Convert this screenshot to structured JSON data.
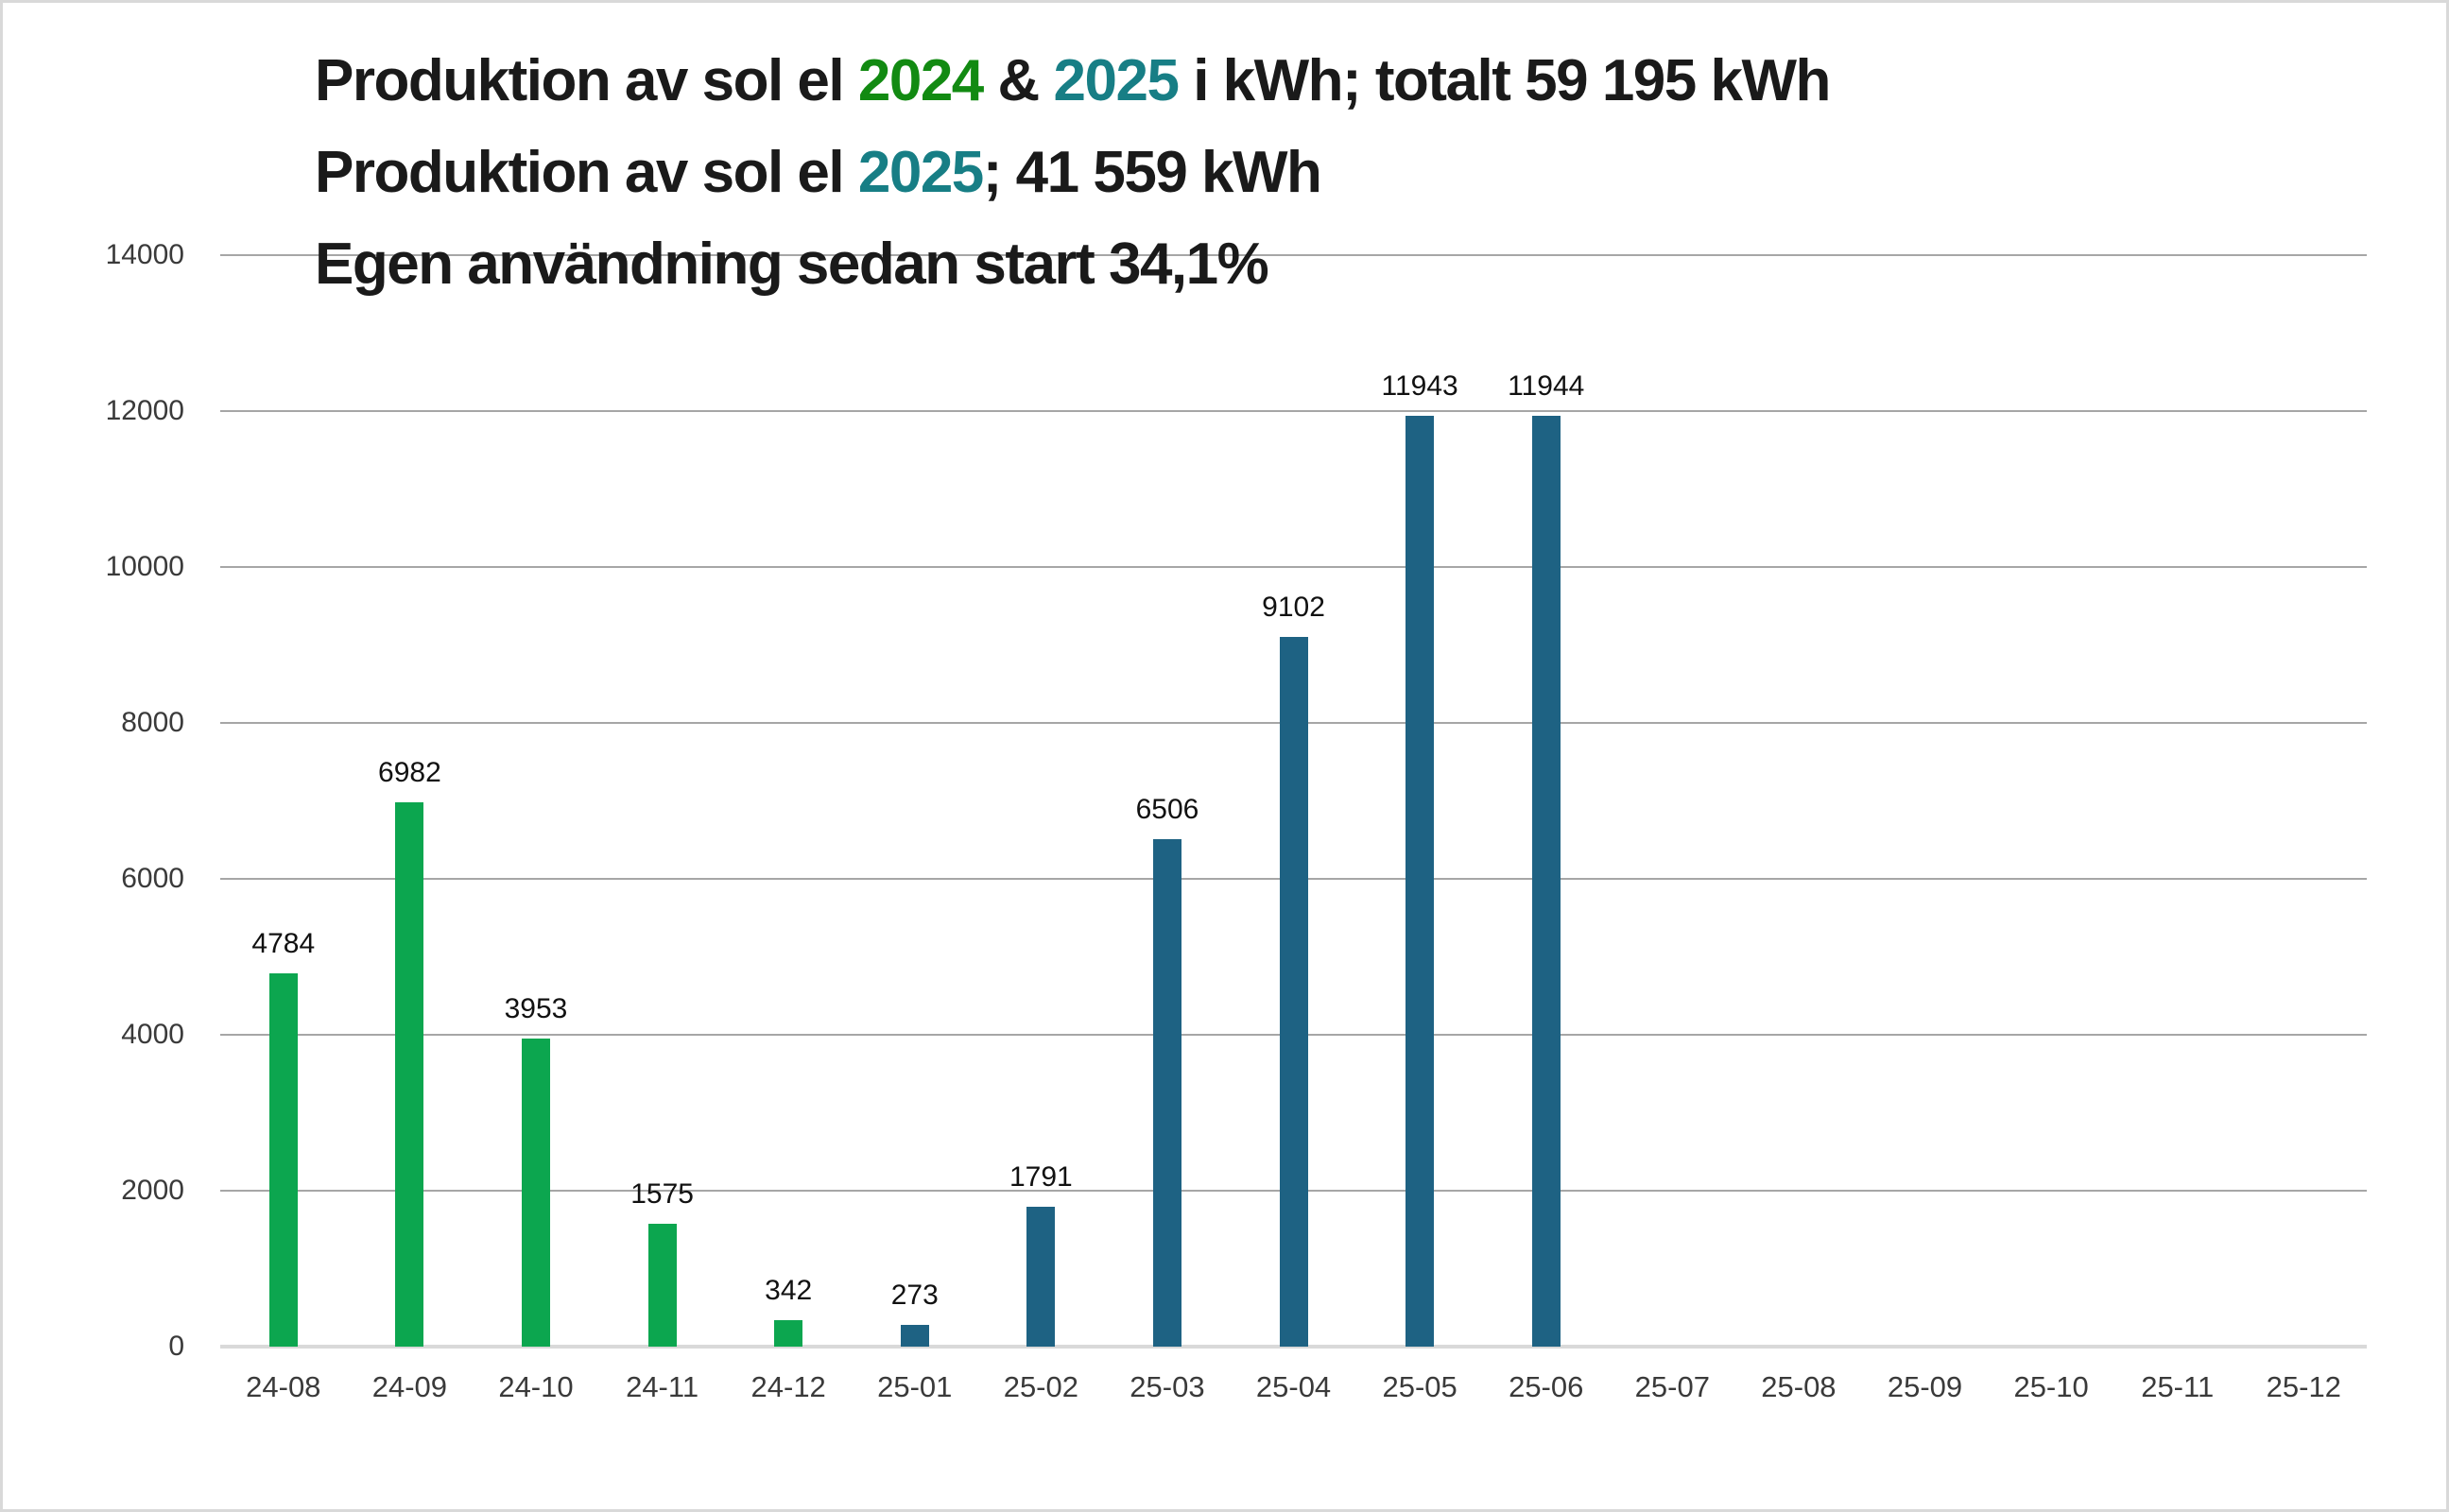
{
  "title": {
    "lines": [
      {
        "name": "title-line-1",
        "parts": [
          {
            "text": "Produktion av sol el ",
            "color": "#1a1a1a"
          },
          {
            "text": "2024",
            "color": "#128a12"
          },
          {
            "text": " & ",
            "color": "#1a1a1a"
          },
          {
            "text": "2025",
            "color": "#177e85"
          },
          {
            "text": " i kWh; totalt 59 195 kWh",
            "color": "#1a1a1a"
          }
        ]
      },
      {
        "name": "title-line-2",
        "parts": [
          {
            "text": "Produktion av sol el ",
            "color": "#1a1a1a"
          },
          {
            "text": "2025",
            "color": "#177e85"
          },
          {
            "text": "; 41 559 kWh",
            "color": "#1a1a1a"
          }
        ]
      },
      {
        "name": "title-line-3",
        "parts": [
          {
            "text": "Egen användning sedan start 34,1%",
            "color": "#1a1a1a"
          }
        ]
      }
    ]
  },
  "chart_data": {
    "type": "bar",
    "title": "Produktion av sol el 2024 & 2025 i kWh; totalt 59 195 kWh",
    "subtitle": "Produktion av sol el 2025; 41 559 kWh",
    "subtitle2": "Egen användning sedan start 34,1%",
    "categories": [
      "24-08",
      "24-09",
      "24-10",
      "24-11",
      "24-12",
      "25-01",
      "25-02",
      "25-03",
      "25-04",
      "25-05",
      "25-06",
      "25-07",
      "25-08",
      "25-09",
      "25-10",
      "25-11",
      "25-12"
    ],
    "values": [
      4784,
      6982,
      3953,
      1575,
      342,
      273,
      1791,
      6506,
      9102,
      11943,
      11944,
      null,
      null,
      null,
      null,
      null,
      null
    ],
    "groups": [
      "2024",
      "2024",
      "2024",
      "2024",
      "2024",
      "2025",
      "2025",
      "2025",
      "2025",
      "2025",
      "2025",
      null,
      null,
      null,
      null,
      null,
      null
    ],
    "data_labels": [
      "4784",
      "6982",
      "3953",
      "1575",
      "342",
      "273",
      "1791",
      "6506",
      "9102",
      "11943",
      "11944",
      "",
      "",
      "",
      "",
      "",
      ""
    ],
    "xlabel": "",
    "ylabel": "",
    "ylim": [
      0,
      14000
    ],
    "yticks": [
      0,
      2000,
      4000,
      6000,
      8000,
      10000,
      12000,
      14000
    ],
    "ytick_labels": [
      "0",
      "2000",
      "4000",
      "6000",
      "8000",
      "10000",
      "12000",
      "14000"
    ],
    "grid": true,
    "legend": "none",
    "colors": {
      "2024": "#0ca64f",
      "2025": "#1e6283",
      "gridline": "#a6a6a6",
      "axis_line": "#d9d9d9",
      "tick_text": "#3a3a3a",
      "data_label_text": "#111111",
      "title_green": "#128a12",
      "title_teal": "#177e85",
      "background": "#ffffff",
      "frame_border": "#d9d9d9"
    }
  }
}
